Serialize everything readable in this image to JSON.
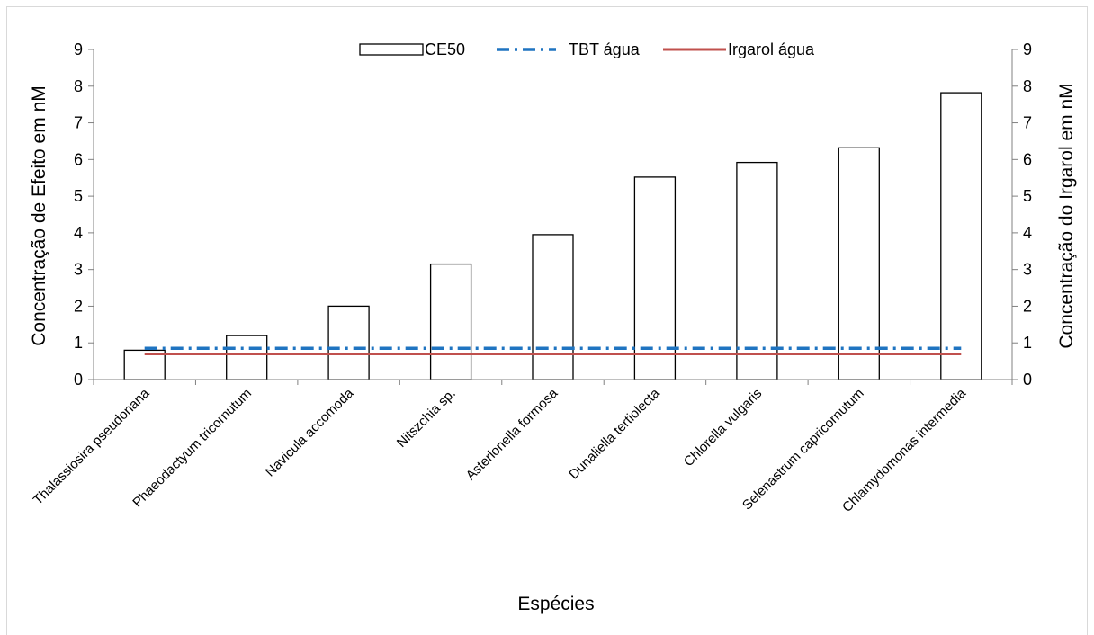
{
  "chart_data": {
    "type": "bar",
    "title": "",
    "categories": [
      "Thalassiosira pseudonana",
      "Phaeodactyum tricornutum",
      "Navicula accomoda",
      "Nitszchia sp.",
      "Asterionella formosa",
      "Dunaliella tertiolecta",
      "Chlorella vulgaris",
      "Selenastrum capricornutum",
      "Chlamydomonas intermedia"
    ],
    "series": [
      {
        "name": "CE50",
        "kind": "bar",
        "axis": "left",
        "values": [
          0.8,
          1.2,
          2.0,
          3.15,
          3.95,
          5.52,
          5.92,
          6.32,
          7.82
        ]
      },
      {
        "name": "TBT água",
        "kind": "line",
        "style": "dash-dot",
        "axis": "left",
        "values": [
          0.85,
          0.85,
          0.85,
          0.85,
          0.85,
          0.85,
          0.85,
          0.85,
          0.85
        ]
      },
      {
        "name": "Irgarol água",
        "kind": "line",
        "style": "solid",
        "axis": "right",
        "values": [
          0.7,
          0.7,
          0.7,
          0.7,
          0.7,
          0.7,
          0.7,
          0.7,
          0.7
        ]
      }
    ],
    "xlabel": "Espécies",
    "ylabel": "Concentração de Efeito em nM",
    "y2label": "Concentração do Irgarol em nM",
    "ylim": [
      0,
      9
    ],
    "y2lim": [
      0,
      9
    ],
    "yticks": [
      "0",
      "1",
      "2",
      "3",
      "4",
      "5",
      "6",
      "7",
      "8",
      "9"
    ],
    "y2ticks": [
      "0",
      "1",
      "2",
      "3",
      "4",
      "5",
      "6",
      "7",
      "8",
      "9"
    ],
    "grid": false,
    "legend_position": "top-center",
    "colors": {
      "bar_fill": "#ffffff",
      "bar_edge": "#000000",
      "tbt": "#1f74c1",
      "irgarol": "#c0504d",
      "axis": "#808080",
      "frame": "#d9d9d9"
    }
  }
}
